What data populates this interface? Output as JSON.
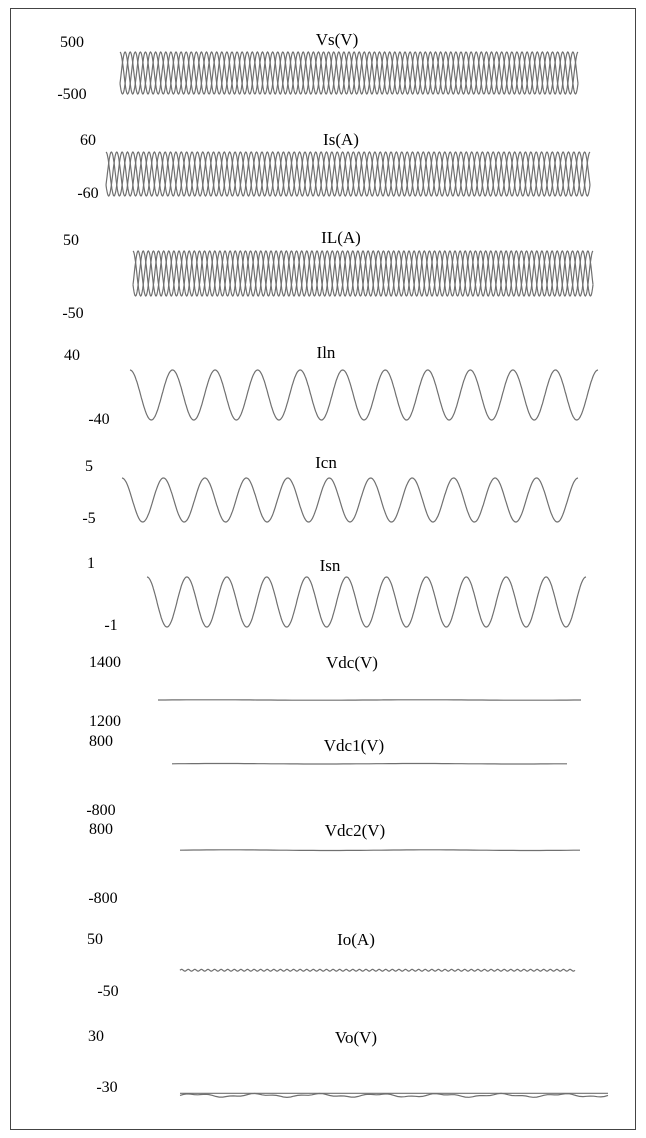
{
  "chart_data": [
    {
      "type": "line",
      "title": "Vs(V)",
      "ylim": [
        -500,
        500
      ],
      "tick_top": "500",
      "tick_bottom": "-500",
      "waveform": "three-phase",
      "cycles": 30
    },
    {
      "type": "line",
      "title": "Is(A)",
      "ylim": [
        -60,
        60
      ],
      "tick_top": "60",
      "tick_bottom": "-60",
      "waveform": "three-phase",
      "cycles": 30
    },
    {
      "type": "line",
      "title": "IL(A)",
      "ylim": [
        -50,
        50
      ],
      "tick_top": "50",
      "tick_bottom": "-50",
      "waveform": "three-phase",
      "cycles": 30
    },
    {
      "type": "line",
      "title": "Iln",
      "ylim": [
        -40,
        40
      ],
      "tick_top": "40",
      "tick_bottom": "-40",
      "waveform": "sine",
      "cycles": 11,
      "amplitude": 1.0
    },
    {
      "type": "line",
      "title": "Icn",
      "ylim": [
        -5,
        5
      ],
      "tick_top": "5",
      "tick_bottom": "-5",
      "waveform": "sine",
      "cycles": 11,
      "amplitude": 1.0
    },
    {
      "type": "line",
      "title": "Isn",
      "ylim": [
        -1,
        1
      ],
      "tick_top": "1",
      "tick_bottom": "-1",
      "waveform": "sine",
      "cycles": 11,
      "amplitude": 1.0
    },
    {
      "type": "line",
      "title": "Vdc(V)",
      "ylim": [
        1200,
        1400
      ],
      "tick_top": "1400",
      "tick_bottom": "1200",
      "waveform": "flat",
      "level": 1300
    },
    {
      "type": "line",
      "title": "Vdc1(V)",
      "ylim": [
        -800,
        800
      ],
      "tick_top": "800",
      "tick_bottom": "-800",
      "waveform": "flat",
      "level": 650
    },
    {
      "type": "line",
      "title": "Vdc2(V)",
      "ylim": [
        -800,
        800
      ],
      "tick_top": "800",
      "tick_bottom": "-800",
      "waveform": "flat",
      "level": 650
    },
    {
      "type": "line",
      "title": "Io(A)",
      "ylim": [
        -50,
        50
      ],
      "tick_top": "50",
      "tick_bottom": "-50",
      "waveform": "ripple",
      "level": 5,
      "ripple": 2,
      "cycles": 60
    },
    {
      "type": "line",
      "title": "Vo(V)",
      "ylim": [
        -30,
        30
      ],
      "tick_top": "30",
      "tick_bottom": "-30",
      "waveform": "flat-pair",
      "level": -22
    }
  ]
}
